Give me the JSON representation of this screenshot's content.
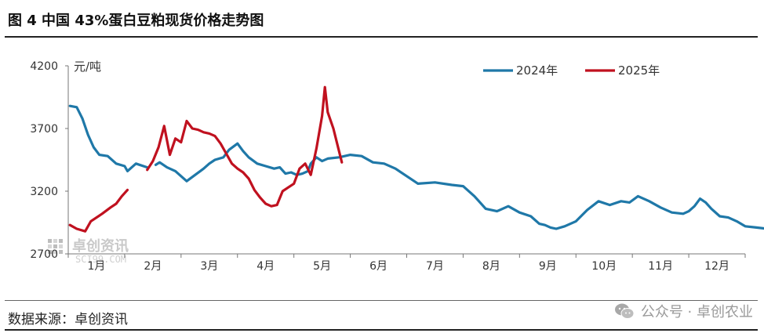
{
  "header": {
    "title": "图 4  中国 43%蛋白豆粕现货价格走势图"
  },
  "footer": {
    "source": "数据来源：卓创资讯",
    "wechat": "公众号 · 卓创农业"
  },
  "watermark": {
    "main": "卓创资讯",
    "sub": "SCI99.COM"
  },
  "colors": {
    "s2024": "#1f78a8",
    "s2025": "#c0111f",
    "axis": "#777777"
  },
  "chart_data": {
    "type": "line",
    "ylabel": "元/吨",
    "ylim": [
      2700,
      4200
    ],
    "yticks": [
      2700,
      3200,
      3700,
      4200
    ],
    "xlabel": "",
    "categories": [
      "1月",
      "2月",
      "3月",
      "4月",
      "5月",
      "6月",
      "7月",
      "8月",
      "9月",
      "10月",
      "11月",
      "12月"
    ],
    "legend_position": "top-right",
    "grid": false,
    "series": [
      {
        "name": "2024年",
        "color": "#1f78a8",
        "points": [
          [
            0.03,
            3880
          ],
          [
            0.15,
            3870
          ],
          [
            0.25,
            3780
          ],
          [
            0.35,
            3650
          ],
          [
            0.45,
            3550
          ],
          [
            0.55,
            3490
          ],
          [
            0.7,
            3480
          ],
          [
            0.85,
            3420
          ],
          [
            1.0,
            3400
          ],
          [
            1.05,
            3360
          ],
          [
            1.2,
            3420
          ],
          [
            1.4,
            3390
          ],
          null,
          [
            1.55,
            3410
          ],
          [
            1.62,
            3430
          ],
          [
            1.75,
            3390
          ],
          [
            1.9,
            3360
          ],
          [
            2.0,
            3320
          ],
          [
            2.1,
            3280
          ],
          [
            2.25,
            3330
          ],
          [
            2.4,
            3380
          ],
          [
            2.5,
            3420
          ],
          [
            2.6,
            3450
          ],
          [
            2.75,
            3470
          ],
          [
            2.85,
            3530
          ],
          [
            3.0,
            3580
          ],
          [
            3.1,
            3520
          ],
          [
            3.2,
            3470
          ],
          [
            3.35,
            3420
          ],
          [
            3.5,
            3400
          ],
          [
            3.65,
            3380
          ],
          [
            3.75,
            3390
          ],
          [
            3.85,
            3340
          ],
          [
            3.95,
            3350
          ],
          [
            4.05,
            3330
          ],
          [
            4.15,
            3340
          ],
          [
            4.25,
            3360
          ],
          [
            4.3,
            3420
          ],
          [
            4.4,
            3470
          ],
          [
            4.5,
            3440
          ],
          [
            4.6,
            3460
          ],
          [
            4.8,
            3470
          ],
          [
            5.0,
            3490
          ],
          [
            5.2,
            3480
          ],
          [
            5.4,
            3430
          ],
          [
            5.6,
            3420
          ],
          [
            5.8,
            3380
          ],
          [
            6.0,
            3320
          ],
          [
            6.2,
            3260
          ],
          [
            6.5,
            3270
          ],
          [
            6.8,
            3250
          ],
          [
            7.0,
            3240
          ],
          [
            7.2,
            3160
          ],
          [
            7.4,
            3060
          ],
          [
            7.6,
            3040
          ],
          [
            7.8,
            3080
          ],
          [
            8.0,
            3030
          ],
          [
            8.2,
            3000
          ],
          [
            8.35,
            2940
          ],
          [
            8.45,
            2930
          ],
          [
            8.55,
            2910
          ],
          [
            8.65,
            2900
          ],
          [
            8.8,
            2920
          ],
          [
            9.0,
            2960
          ],
          [
            9.2,
            3050
          ],
          [
            9.4,
            3120
          ],
          [
            9.6,
            3090
          ],
          [
            9.8,
            3120
          ],
          [
            9.95,
            3110
          ],
          [
            10.1,
            3160
          ],
          [
            10.3,
            3120
          ],
          [
            10.5,
            3070
          ],
          [
            10.7,
            3030
          ],
          [
            10.9,
            3020
          ],
          [
            11.0,
            3040
          ],
          [
            11.1,
            3080
          ],
          [
            11.2,
            3140
          ],
          [
            11.3,
            3110
          ],
          [
            11.4,
            3060
          ],
          [
            11.55,
            3000
          ],
          [
            11.7,
            2990
          ],
          [
            11.85,
            2960
          ],
          [
            12.0,
            2920
          ],
          [
            12.2,
            2910
          ],
          [
            12.4,
            2900
          ],
          [
            12.6,
            2880
          ],
          [
            12.7,
            2860
          ],
          [
            12.8,
            2870
          ],
          [
            12.9,
            2870
          ],
          [
            13.0,
            2910
          ],
          [
            13.05,
            2890
          ]
        ]
      },
      {
        "name": "2025年",
        "color": "#c0111f",
        "points": [
          [
            0.03,
            2930
          ],
          [
            0.15,
            2900
          ],
          [
            0.3,
            2880
          ],
          [
            0.4,
            2960
          ],
          [
            0.6,
            3020
          ],
          [
            0.75,
            3070
          ],
          [
            0.85,
            3100
          ],
          [
            0.95,
            3160
          ],
          [
            1.05,
            3210
          ],
          null,
          [
            1.4,
            3370
          ],
          [
            1.5,
            3440
          ],
          [
            1.6,
            3550
          ],
          [
            1.7,
            3720
          ],
          [
            1.8,
            3490
          ],
          [
            1.9,
            3620
          ],
          [
            2.0,
            3590
          ],
          [
            2.1,
            3760
          ],
          [
            2.2,
            3700
          ],
          [
            2.3,
            3690
          ],
          [
            2.4,
            3670
          ],
          [
            2.5,
            3660
          ],
          [
            2.6,
            3640
          ],
          [
            2.7,
            3580
          ],
          [
            2.8,
            3500
          ],
          [
            2.9,
            3420
          ],
          [
            3.0,
            3380
          ],
          [
            3.1,
            3350
          ],
          [
            3.2,
            3300
          ],
          [
            3.3,
            3210
          ],
          [
            3.4,
            3150
          ],
          [
            3.5,
            3100
          ],
          [
            3.6,
            3080
          ],
          [
            3.7,
            3090
          ],
          [
            3.8,
            3200
          ],
          [
            3.9,
            3230
          ],
          [
            4.0,
            3260
          ],
          [
            4.1,
            3380
          ],
          [
            4.2,
            3420
          ],
          [
            4.3,
            3330
          ],
          [
            4.4,
            3540
          ],
          [
            4.5,
            3800
          ],
          [
            4.55,
            4030
          ],
          [
            4.6,
            3830
          ],
          [
            4.7,
            3700
          ],
          [
            4.8,
            3520
          ],
          [
            4.85,
            3430
          ]
        ]
      }
    ]
  }
}
